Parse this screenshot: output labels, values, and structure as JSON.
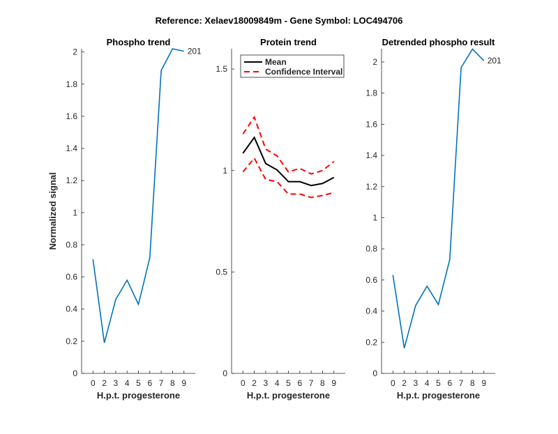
{
  "figure_title": "Reference:  Xelaev18009849m - Gene Symbol:  LOC494706",
  "colors": {
    "phospho": "#0072BD",
    "mean": "#000000",
    "ci": "#FF0000",
    "axis": "#262626"
  },
  "chart_data": [
    {
      "type": "line",
      "title": "Phospho trend",
      "xlabel": "H.p.t. progesterone",
      "ylabel": "Normalized signal",
      "categories": [
        "0",
        "2",
        "3",
        "4",
        "5",
        "6",
        "7",
        "8",
        "9"
      ],
      "ylim": [
        0,
        2.02
      ],
      "yticks": [
        "0",
        "0.2",
        "0.4",
        "0.6",
        "0.8",
        "1",
        "1.2",
        "1.4",
        "1.6",
        "1.8",
        "2"
      ],
      "series": [
        {
          "name": "201",
          "values": [
            0.71,
            0.19,
            0.46,
            0.58,
            0.43,
            0.72,
            1.885,
            2.02,
            2.005
          ]
        }
      ],
      "end_label": "201"
    },
    {
      "type": "line",
      "title": "Protein trend",
      "xlabel": "H.p.t. progesterone",
      "ylabel": "",
      "categories": [
        "0",
        "2",
        "3",
        "4",
        "5",
        "6",
        "7",
        "8",
        "9"
      ],
      "ylim": [
        0,
        1.6
      ],
      "yticks": [
        "0",
        "0.5",
        "1",
        "1.5"
      ],
      "legend": {
        "position": "top-left",
        "entries": [
          "Mean",
          "Confidence Interval"
        ]
      },
      "series": [
        {
          "name": "Mean",
          "values": [
            1.085,
            1.163,
            1.034,
            1.003,
            0.945,
            0.945,
            0.926,
            0.936,
            0.966
          ]
        },
        {
          "name": "Confidence Interval (upper)",
          "values": [
            1.18,
            1.263,
            1.106,
            1.072,
            0.993,
            1.01,
            0.983,
            1.0,
            1.044
          ]
        },
        {
          "name": "Confidence Interval (lower)",
          "values": [
            0.993,
            1.061,
            0.956,
            0.945,
            0.884,
            0.884,
            0.867,
            0.877,
            0.891
          ]
        }
      ]
    },
    {
      "type": "line",
      "title": "Detrended phospho result",
      "xlabel": "H.p.t. progesterone",
      "ylabel": "",
      "categories": [
        "0",
        "2",
        "3",
        "4",
        "5",
        "6",
        "7",
        "8",
        "9"
      ],
      "ylim": [
        0,
        2.085
      ],
      "yticks": [
        "0",
        "0.2",
        "0.4",
        "0.6",
        "0.8",
        "1",
        "1.2",
        "1.4",
        "1.6",
        "1.8",
        "2"
      ],
      "series": [
        {
          "name": "201",
          "values": [
            0.632,
            0.162,
            0.436,
            0.56,
            0.442,
            0.731,
            1.964,
            2.083,
            2.008
          ]
        }
      ],
      "end_label": "201"
    }
  ]
}
